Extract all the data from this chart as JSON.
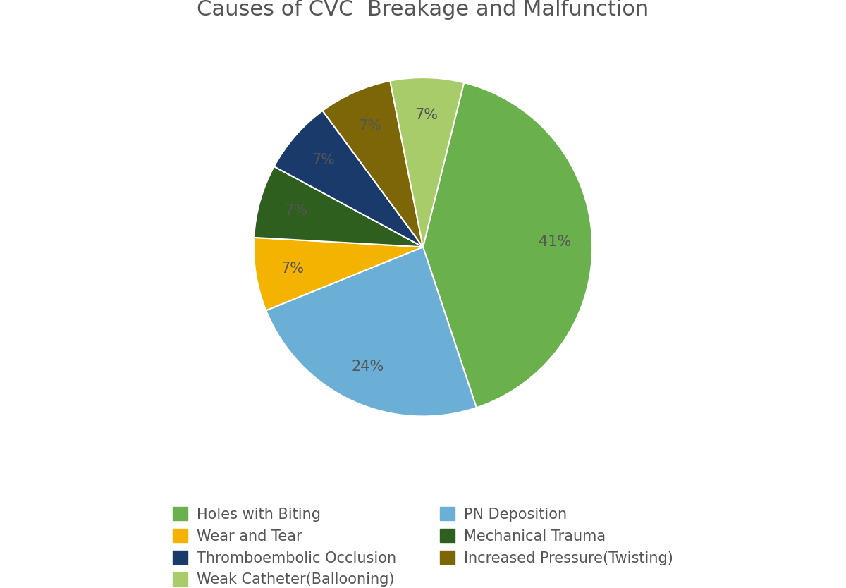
{
  "title": "Causes of CVC  Breakage and Malfunction",
  "slices": [
    {
      "label": "Holes with Biting",
      "value": 41,
      "color": "#6ab04c"
    },
    {
      "label": "PN Deposition",
      "value": 24,
      "color": "#6baed6"
    },
    {
      "label": "Wear and Tear",
      "value": 7,
      "color": "#f5b301"
    },
    {
      "label": "Mechanical Trauma",
      "value": 7,
      "color": "#2e5f1e"
    },
    {
      "label": "Thromboembolic Occlusion",
      "value": 7,
      "color": "#1a3a6b"
    },
    {
      "label": "Increased Pressure(Twisting)",
      "value": 7,
      "color": "#7d6608"
    },
    {
      "label": "Weak Catheter(Ballooning)",
      "value": 7,
      "color": "#a9cc6b"
    }
  ],
  "title_fontsize": 22,
  "pct_fontsize": 15,
  "legend_fontsize": 15,
  "background_color": "#ffffff",
  "startangle": 76,
  "pct_distance": 0.78,
  "legend_order": [
    0,
    2,
    4,
    6,
    1,
    3,
    5
  ]
}
